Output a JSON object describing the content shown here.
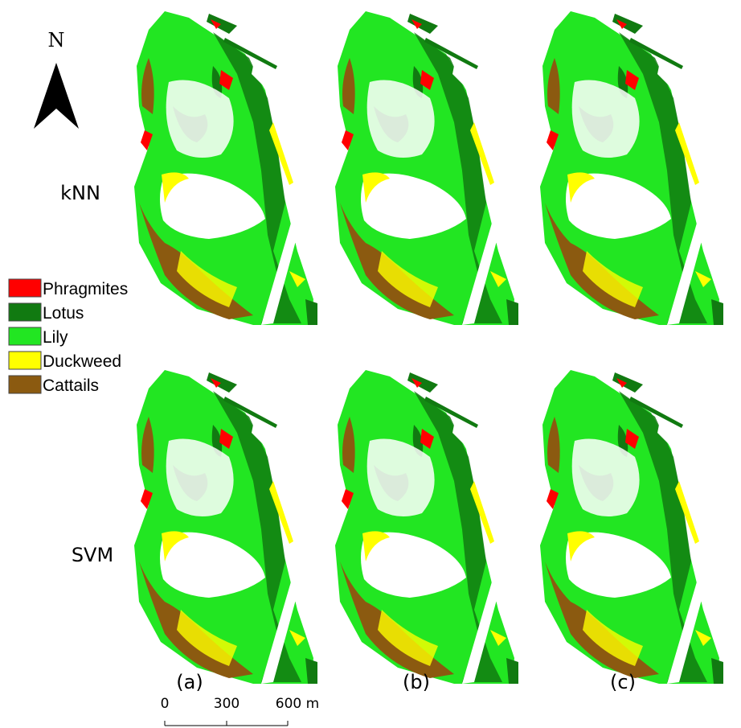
{
  "north": "N",
  "rows": [
    "kNN",
    "SVM"
  ],
  "legend": [
    {
      "name": "Phragmites",
      "color": "#ff0000"
    },
    {
      "name": "Lotus",
      "color": "#117a11"
    },
    {
      "name": "Lily",
      "color": "#22e622"
    },
    {
      "name": "Duckweed",
      "color": "#ffff00"
    },
    {
      "name": "Cattails",
      "color": "#8b5a10"
    }
  ],
  "panels": [
    "(a)",
    "(b)",
    "(c)"
  ],
  "scale_bar": [
    "0",
    "300",
    "600 m"
  ]
}
